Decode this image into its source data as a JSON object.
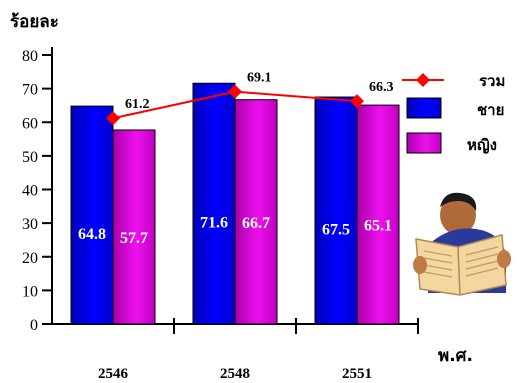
{
  "chart_data": {
    "type": "bar",
    "ylabel": "ร้อยละ",
    "xlabel": "พ.ศ.",
    "ylim": [
      0,
      80
    ],
    "yticks": [
      0,
      10,
      20,
      30,
      40,
      50,
      60,
      70,
      80
    ],
    "categories": [
      "2546",
      "2548",
      "2551"
    ],
    "series": [
      {
        "name": "ชาย",
        "type": "bar",
        "values": [
          64.8,
          71.6,
          67.5
        ]
      },
      {
        "name": "หญิง",
        "type": "bar",
        "values": [
          57.7,
          66.7,
          65.1
        ]
      },
      {
        "name": "รวม",
        "type": "line",
        "values": [
          61.2,
          69.1,
          66.3
        ]
      }
    ],
    "colors": {
      "male_bar": "#0000ff",
      "female_bar": "#cc00cc",
      "total_line": "#ff0000"
    },
    "legend_position": "right",
    "grid": false
  },
  "decoration": {
    "icon": "person-reading-newspaper-icon"
  }
}
